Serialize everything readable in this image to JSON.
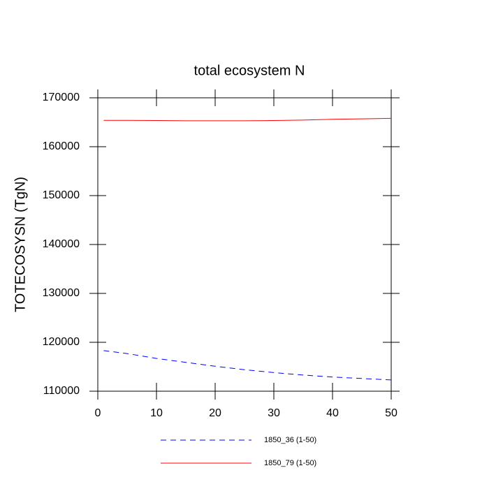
{
  "chart_data": {
    "type": "line",
    "title": "total ecosystem N",
    "y_label": "TOTECOSYSN  (TgN)",
    "x": [
      1,
      5,
      10,
      15,
      20,
      25,
      30,
      35,
      40,
      45,
      50
    ],
    "series": [
      {
        "name": "1850_36 (1-50)",
        "color": "#0000ff",
        "dash": true,
        "values": [
          118300,
          117700,
          116700,
          115900,
          115100,
          114400,
          113800,
          113300,
          112900,
          112600,
          112300
        ]
      },
      {
        "name": "1850_79 (1-50)",
        "color": "#ff0000",
        "dash": false,
        "values": [
          165400,
          165400,
          165350,
          165300,
          165300,
          165300,
          165350,
          165450,
          165600,
          165700,
          165800
        ]
      }
    ],
    "xlim": [
      0,
      50
    ],
    "xticks": [
      0,
      10,
      20,
      30,
      40,
      50
    ],
    "ylim": [
      110000,
      170000
    ],
    "yticks": [
      110000,
      120000,
      130000,
      140000,
      150000,
      160000,
      170000
    ]
  }
}
